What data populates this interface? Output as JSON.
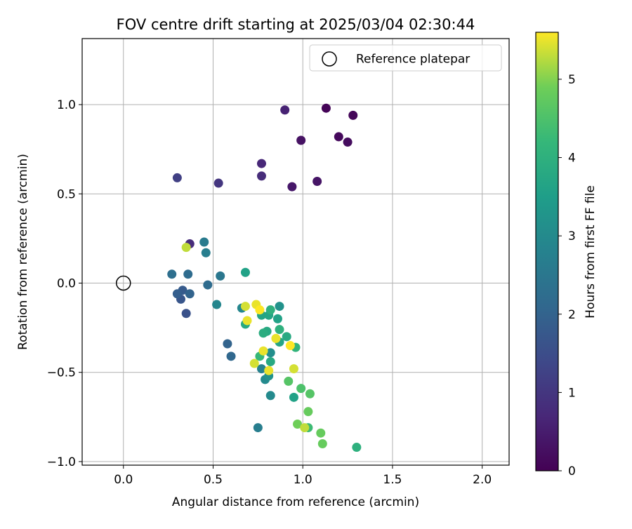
{
  "chart_data": {
    "type": "scatter",
    "title": "FOV centre drift starting at 2025/03/04 02:30:44",
    "xlabel": "Angular distance from reference (arcmin)",
    "ylabel": "Rotation from reference (arcmin)",
    "xlim": [
      -0.23,
      2.15
    ],
    "ylim": [
      -1.02,
      1.37
    ],
    "xticks": [
      0.0,
      0.5,
      1.0,
      1.5,
      2.0
    ],
    "xtick_labels": [
      "0.0",
      "0.5",
      "1.0",
      "1.5",
      "2.0"
    ],
    "yticks": [
      -1.0,
      -0.5,
      0.0,
      0.5,
      1.0
    ],
    "ytick_labels": [
      "−1.0",
      "−0.5",
      "0.0",
      "0.5",
      "1.0"
    ],
    "grid": true,
    "legend_position": "upper right",
    "legend_label": "Reference platepar",
    "reference_point": {
      "x": 0.0,
      "y": 0.0
    },
    "colorbar": {
      "label": "Hours from first FF file",
      "min": 0,
      "max": 5.6,
      "ticks": [
        0,
        1,
        2,
        3,
        4,
        5
      ],
      "tick_labels": [
        "0",
        "1",
        "2",
        "3",
        "4",
        "5"
      ],
      "colormap": "viridis"
    },
    "points": [
      {
        "x": 1.13,
        "y": 0.98,
        "hours": 0.05
      },
      {
        "x": 1.28,
        "y": 0.94,
        "hours": 0.1
      },
      {
        "x": 1.2,
        "y": 0.82,
        "hours": 0.15
      },
      {
        "x": 1.25,
        "y": 0.79,
        "hours": 0.2
      },
      {
        "x": 0.99,
        "y": 0.8,
        "hours": 0.3
      },
      {
        "x": 1.08,
        "y": 0.57,
        "hours": 0.35
      },
      {
        "x": 0.94,
        "y": 0.54,
        "hours": 0.4
      },
      {
        "x": 0.9,
        "y": 0.97,
        "hours": 0.6
      },
      {
        "x": 0.77,
        "y": 0.67,
        "hours": 0.7
      },
      {
        "x": 0.77,
        "y": 0.6,
        "hours": 0.8
      },
      {
        "x": 0.37,
        "y": 0.22,
        "hours": 0.8
      },
      {
        "x": 0.53,
        "y": 0.56,
        "hours": 1.0
      },
      {
        "x": 0.3,
        "y": 0.59,
        "hours": 1.2
      },
      {
        "x": 0.35,
        "y": -0.17,
        "hours": 1.6
      },
      {
        "x": 0.32,
        "y": -0.09,
        "hours": 1.7
      },
      {
        "x": 0.33,
        "y": -0.04,
        "hours": 1.8
      },
      {
        "x": 0.3,
        "y": -0.06,
        "hours": 1.9
      },
      {
        "x": 0.37,
        "y": -0.06,
        "hours": 2.0
      },
      {
        "x": 0.58,
        "y": -0.34,
        "hours": 2.0
      },
      {
        "x": 0.6,
        "y": -0.41,
        "hours": 2.1
      },
      {
        "x": 0.47,
        "y": -0.01,
        "hours": 2.2
      },
      {
        "x": 0.36,
        "y": 0.05,
        "hours": 2.2
      },
      {
        "x": 0.27,
        "y": 0.05,
        "hours": 2.3
      },
      {
        "x": 0.54,
        "y": 0.04,
        "hours": 2.5
      },
      {
        "x": 0.45,
        "y": 0.23,
        "hours": 2.6
      },
      {
        "x": 0.46,
        "y": 0.17,
        "hours": 2.7
      },
      {
        "x": 0.75,
        "y": -0.81,
        "hours": 2.7
      },
      {
        "x": 0.52,
        "y": -0.12,
        "hours": 2.9
      },
      {
        "x": 0.66,
        "y": -0.14,
        "hours": 2.9
      },
      {
        "x": 0.77,
        "y": -0.48,
        "hours": 2.8
      },
      {
        "x": 0.79,
        "y": -0.54,
        "hours": 3.0
      },
      {
        "x": 0.82,
        "y": -0.63,
        "hours": 3.0
      },
      {
        "x": 0.82,
        "y": -0.39,
        "hours": 3.1
      },
      {
        "x": 0.87,
        "y": -0.13,
        "hours": 3.2
      },
      {
        "x": 0.81,
        "y": -0.52,
        "hours": 3.2
      },
      {
        "x": 0.68,
        "y": 0.06,
        "hours": 3.6
      },
      {
        "x": 0.77,
        "y": -0.18,
        "hours": 3.7
      },
      {
        "x": 0.81,
        "y": -0.18,
        "hours": 3.7
      },
      {
        "x": 0.86,
        "y": -0.2,
        "hours": 3.6
      },
      {
        "x": 0.68,
        "y": -0.23,
        "hours": 3.8
      },
      {
        "x": 0.8,
        "y": -0.27,
        "hours": 3.8
      },
      {
        "x": 0.82,
        "y": -0.44,
        "hours": 3.8
      },
      {
        "x": 0.78,
        "y": -0.28,
        "hours": 3.9
      },
      {
        "x": 0.87,
        "y": -0.33,
        "hours": 3.7
      },
      {
        "x": 0.91,
        "y": -0.3,
        "hours": 3.8
      },
      {
        "x": 0.95,
        "y": -0.64,
        "hours": 3.6
      },
      {
        "x": 0.82,
        "y": -0.15,
        "hours": 4.0
      },
      {
        "x": 0.87,
        "y": -0.26,
        "hours": 4.0
      },
      {
        "x": 0.96,
        "y": -0.36,
        "hours": 4.1
      },
      {
        "x": 0.76,
        "y": -0.41,
        "hours": 4.2
      },
      {
        "x": 1.3,
        "y": -0.92,
        "hours": 4.0
      },
      {
        "x": 0.99,
        "y": -0.59,
        "hours": 4.5
      },
      {
        "x": 0.92,
        "y": -0.55,
        "hours": 4.6
      },
      {
        "x": 1.04,
        "y": -0.62,
        "hours": 4.6
      },
      {
        "x": 1.03,
        "y": -0.72,
        "hours": 4.8
      },
      {
        "x": 1.1,
        "y": -0.84,
        "hours": 4.8
      },
      {
        "x": 1.11,
        "y": -0.9,
        "hours": 4.8
      },
      {
        "x": 0.97,
        "y": -0.79,
        "hours": 4.9
      },
      {
        "x": 1.03,
        "y": -0.81,
        "hours": 4.3
      },
      {
        "x": 1.01,
        "y": -0.81,
        "hours": 5.3
      },
      {
        "x": 0.73,
        "y": -0.45,
        "hours": 5.4
      },
      {
        "x": 0.95,
        "y": -0.48,
        "hours": 5.4
      },
      {
        "x": 0.81,
        "y": -0.49,
        "hours": 5.5
      },
      {
        "x": 0.78,
        "y": -0.38,
        "hours": 5.5
      },
      {
        "x": 0.85,
        "y": -0.31,
        "hours": 5.5
      },
      {
        "x": 0.93,
        "y": -0.35,
        "hours": 5.6
      },
      {
        "x": 0.69,
        "y": -0.21,
        "hours": 5.5
      },
      {
        "x": 0.68,
        "y": -0.13,
        "hours": 5.4
      },
      {
        "x": 0.74,
        "y": -0.12,
        "hours": 5.5
      },
      {
        "x": 0.76,
        "y": -0.15,
        "hours": 5.6
      },
      {
        "x": 0.35,
        "y": 0.2,
        "hours": 5.3
      }
    ]
  }
}
